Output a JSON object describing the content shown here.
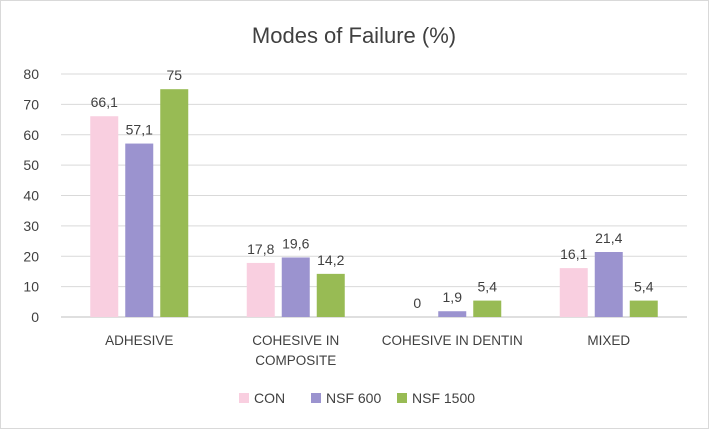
{
  "chart_data": {
    "type": "bar",
    "title": "Modes of Failure (%)",
    "xlabel": "",
    "ylabel": "",
    "ylim": [
      0,
      80
    ],
    "yticks": [
      "0",
      "10",
      "20",
      "30",
      "40",
      "50",
      "60",
      "70",
      "80"
    ],
    "grid": true,
    "legend_position": "bottom",
    "categories": [
      [
        "ADHESIVE"
      ],
      [
        "COHESIVE IN",
        "COMPOSITE"
      ],
      [
        "COHESIVE IN DENTIN"
      ],
      [
        "MIXED"
      ]
    ],
    "series": [
      {
        "name": "CON",
        "color": "#f9cfe0",
        "values": [
          66.1,
          17.8,
          0,
          16.1
        ],
        "labels": [
          "66,1",
          "17,8",
          "0",
          "16,1"
        ]
      },
      {
        "name": "NSF 600",
        "color": "#9b93cf",
        "values": [
          57.1,
          19.6,
          1.9,
          21.4
        ],
        "labels": [
          "57,1",
          "19,6",
          "1,9",
          "21,4"
        ]
      },
      {
        "name": "NSF 1500",
        "color": "#98bb54",
        "values": [
          75,
          14.2,
          5.4,
          5.4
        ],
        "labels": [
          "75",
          "14,2",
          "5,4",
          "5,4"
        ]
      }
    ]
  }
}
